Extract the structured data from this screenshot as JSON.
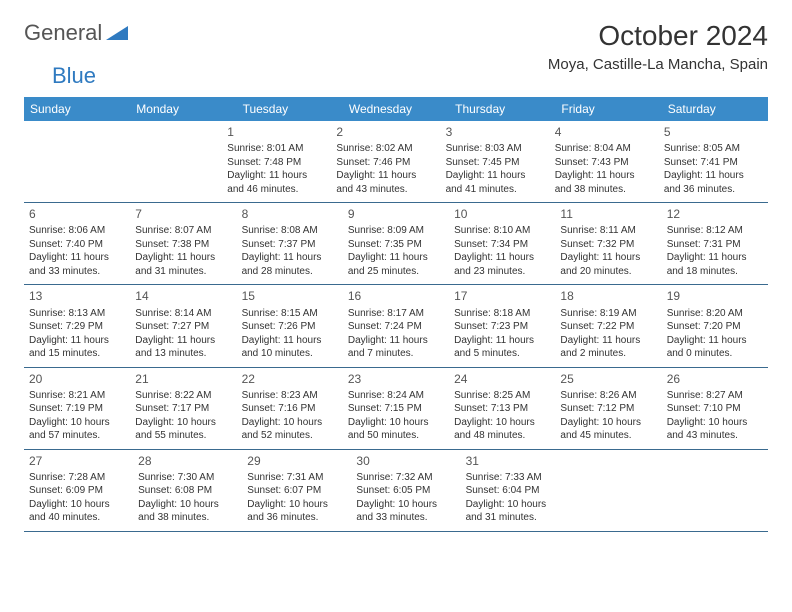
{
  "logo": {
    "text1": "General",
    "text2": "Blue"
  },
  "title": "October 2024",
  "location": "Moya, Castille-La Mancha, Spain",
  "colors": {
    "header_bg": "#3a8bc9",
    "header_text": "#ffffff",
    "border": "#3a6a8f",
    "logo_accent": "#2f7ac0",
    "text": "#333333"
  },
  "weekdays": [
    "Sunday",
    "Monday",
    "Tuesday",
    "Wednesday",
    "Thursday",
    "Friday",
    "Saturday"
  ],
  "weeks": [
    [
      null,
      null,
      {
        "n": "1",
        "sr": "Sunrise: 8:01 AM",
        "ss": "Sunset: 7:48 PM",
        "d1": "Daylight: 11 hours",
        "d2": "and 46 minutes."
      },
      {
        "n": "2",
        "sr": "Sunrise: 8:02 AM",
        "ss": "Sunset: 7:46 PM",
        "d1": "Daylight: 11 hours",
        "d2": "and 43 minutes."
      },
      {
        "n": "3",
        "sr": "Sunrise: 8:03 AM",
        "ss": "Sunset: 7:45 PM",
        "d1": "Daylight: 11 hours",
        "d2": "and 41 minutes."
      },
      {
        "n": "4",
        "sr": "Sunrise: 8:04 AM",
        "ss": "Sunset: 7:43 PM",
        "d1": "Daylight: 11 hours",
        "d2": "and 38 minutes."
      },
      {
        "n": "5",
        "sr": "Sunrise: 8:05 AM",
        "ss": "Sunset: 7:41 PM",
        "d1": "Daylight: 11 hours",
        "d2": "and 36 minutes."
      }
    ],
    [
      {
        "n": "6",
        "sr": "Sunrise: 8:06 AM",
        "ss": "Sunset: 7:40 PM",
        "d1": "Daylight: 11 hours",
        "d2": "and 33 minutes."
      },
      {
        "n": "7",
        "sr": "Sunrise: 8:07 AM",
        "ss": "Sunset: 7:38 PM",
        "d1": "Daylight: 11 hours",
        "d2": "and 31 minutes."
      },
      {
        "n": "8",
        "sr": "Sunrise: 8:08 AM",
        "ss": "Sunset: 7:37 PM",
        "d1": "Daylight: 11 hours",
        "d2": "and 28 minutes."
      },
      {
        "n": "9",
        "sr": "Sunrise: 8:09 AM",
        "ss": "Sunset: 7:35 PM",
        "d1": "Daylight: 11 hours",
        "d2": "and 25 minutes."
      },
      {
        "n": "10",
        "sr": "Sunrise: 8:10 AM",
        "ss": "Sunset: 7:34 PM",
        "d1": "Daylight: 11 hours",
        "d2": "and 23 minutes."
      },
      {
        "n": "11",
        "sr": "Sunrise: 8:11 AM",
        "ss": "Sunset: 7:32 PM",
        "d1": "Daylight: 11 hours",
        "d2": "and 20 minutes."
      },
      {
        "n": "12",
        "sr": "Sunrise: 8:12 AM",
        "ss": "Sunset: 7:31 PM",
        "d1": "Daylight: 11 hours",
        "d2": "and 18 minutes."
      }
    ],
    [
      {
        "n": "13",
        "sr": "Sunrise: 8:13 AM",
        "ss": "Sunset: 7:29 PM",
        "d1": "Daylight: 11 hours",
        "d2": "and 15 minutes."
      },
      {
        "n": "14",
        "sr": "Sunrise: 8:14 AM",
        "ss": "Sunset: 7:27 PM",
        "d1": "Daylight: 11 hours",
        "d2": "and 13 minutes."
      },
      {
        "n": "15",
        "sr": "Sunrise: 8:15 AM",
        "ss": "Sunset: 7:26 PM",
        "d1": "Daylight: 11 hours",
        "d2": "and 10 minutes."
      },
      {
        "n": "16",
        "sr": "Sunrise: 8:17 AM",
        "ss": "Sunset: 7:24 PM",
        "d1": "Daylight: 11 hours",
        "d2": "and 7 minutes."
      },
      {
        "n": "17",
        "sr": "Sunrise: 8:18 AM",
        "ss": "Sunset: 7:23 PM",
        "d1": "Daylight: 11 hours",
        "d2": "and 5 minutes."
      },
      {
        "n": "18",
        "sr": "Sunrise: 8:19 AM",
        "ss": "Sunset: 7:22 PM",
        "d1": "Daylight: 11 hours",
        "d2": "and 2 minutes."
      },
      {
        "n": "19",
        "sr": "Sunrise: 8:20 AM",
        "ss": "Sunset: 7:20 PM",
        "d1": "Daylight: 11 hours",
        "d2": "and 0 minutes."
      }
    ],
    [
      {
        "n": "20",
        "sr": "Sunrise: 8:21 AM",
        "ss": "Sunset: 7:19 PM",
        "d1": "Daylight: 10 hours",
        "d2": "and 57 minutes."
      },
      {
        "n": "21",
        "sr": "Sunrise: 8:22 AM",
        "ss": "Sunset: 7:17 PM",
        "d1": "Daylight: 10 hours",
        "d2": "and 55 minutes."
      },
      {
        "n": "22",
        "sr": "Sunrise: 8:23 AM",
        "ss": "Sunset: 7:16 PM",
        "d1": "Daylight: 10 hours",
        "d2": "and 52 minutes."
      },
      {
        "n": "23",
        "sr": "Sunrise: 8:24 AM",
        "ss": "Sunset: 7:15 PM",
        "d1": "Daylight: 10 hours",
        "d2": "and 50 minutes."
      },
      {
        "n": "24",
        "sr": "Sunrise: 8:25 AM",
        "ss": "Sunset: 7:13 PM",
        "d1": "Daylight: 10 hours",
        "d2": "and 48 minutes."
      },
      {
        "n": "25",
        "sr": "Sunrise: 8:26 AM",
        "ss": "Sunset: 7:12 PM",
        "d1": "Daylight: 10 hours",
        "d2": "and 45 minutes."
      },
      {
        "n": "26",
        "sr": "Sunrise: 8:27 AM",
        "ss": "Sunset: 7:10 PM",
        "d1": "Daylight: 10 hours",
        "d2": "and 43 minutes."
      }
    ],
    [
      {
        "n": "27",
        "sr": "Sunrise: 7:28 AM",
        "ss": "Sunset: 6:09 PM",
        "d1": "Daylight: 10 hours",
        "d2": "and 40 minutes."
      },
      {
        "n": "28",
        "sr": "Sunrise: 7:30 AM",
        "ss": "Sunset: 6:08 PM",
        "d1": "Daylight: 10 hours",
        "d2": "and 38 minutes."
      },
      {
        "n": "29",
        "sr": "Sunrise: 7:31 AM",
        "ss": "Sunset: 6:07 PM",
        "d1": "Daylight: 10 hours",
        "d2": "and 36 minutes."
      },
      {
        "n": "30",
        "sr": "Sunrise: 7:32 AM",
        "ss": "Sunset: 6:05 PM",
        "d1": "Daylight: 10 hours",
        "d2": "and 33 minutes."
      },
      {
        "n": "31",
        "sr": "Sunrise: 7:33 AM",
        "ss": "Sunset: 6:04 PM",
        "d1": "Daylight: 10 hours",
        "d2": "and 31 minutes."
      },
      null,
      null
    ]
  ]
}
